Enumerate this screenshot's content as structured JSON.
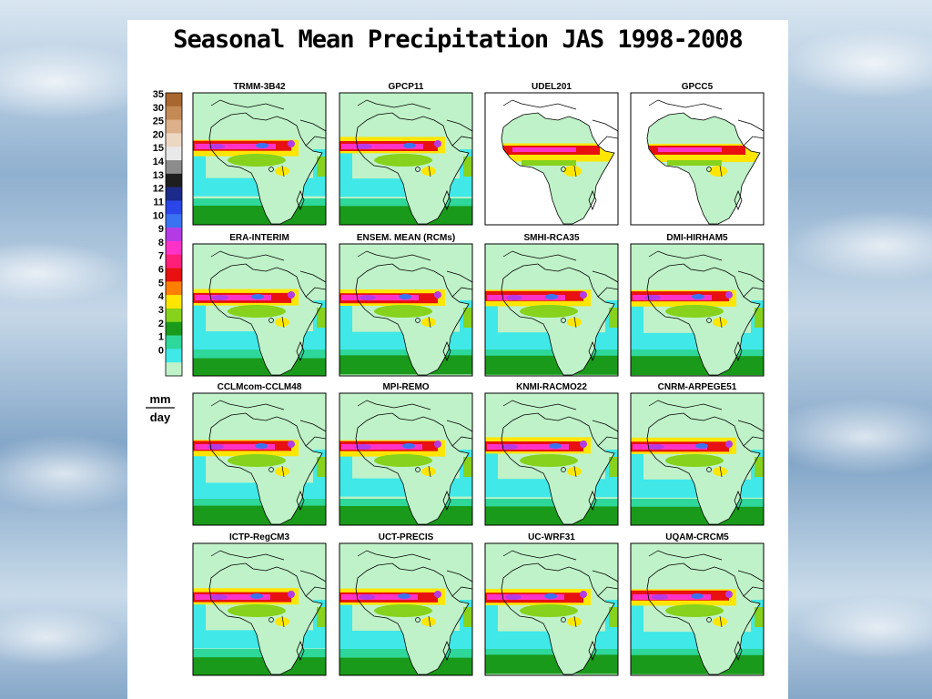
{
  "title": "Seasonal Mean Precipitation JAS 1998-2008",
  "colorbar": {
    "levels": [
      "35",
      "30",
      "25",
      "20",
      "15",
      "14",
      "13",
      "12",
      "11",
      "10",
      "9",
      "8",
      "7",
      "6",
      "5",
      "4",
      "3",
      "2",
      "1",
      "0"
    ],
    "colors": [
      "#a8672e",
      "#c48a55",
      "#dbb08a",
      "#ecd7c2",
      "#e9e9e9",
      "#8c8c8c",
      "#1e1e1e",
      "#1c2a8a",
      "#2a46e8",
      "#3a73f2",
      "#b43ae6",
      "#ff32c8",
      "#ff1f78",
      "#e81010",
      "#ff8000",
      "#ffe600",
      "#86d21c",
      "#1a9a1a",
      "#2ed79a",
      "#40e8e8",
      "#bff2c8"
    ],
    "units_top": "mm",
    "units_bottom": "day"
  },
  "colors": {
    "land": "#bff2c8",
    "ocean_light": "#40e8e8",
    "ocean_mid": "#2ed79a",
    "ocean_green": "#1a9a1a",
    "rain_yellow": "#ffe600",
    "rain_red": "#e81010",
    "rain_magenta": "#ff32c8",
    "rain_blue": "#3a73f2",
    "rain_purple": "#b43ae6"
  },
  "panels": [
    {
      "label": "TRMM-3B42",
      "style": "full"
    },
    {
      "label": "GPCP11",
      "style": "full"
    },
    {
      "label": "UDEL201",
      "style": "land-only"
    },
    {
      "label": "GPCC5",
      "style": "land-only"
    },
    {
      "label": "ERA-INTERIM",
      "style": "full"
    },
    {
      "label": "ENSEM. MEAN (RCMs)",
      "style": "full"
    },
    {
      "label": "SMHI-RCA35",
      "style": "full"
    },
    {
      "label": "DMI-HIRHAM5",
      "style": "full"
    },
    {
      "label": "CCLMcom-CCLM48",
      "style": "full"
    },
    {
      "label": "MPI-REMO",
      "style": "full"
    },
    {
      "label": "KNMI-RACMO22",
      "style": "full"
    },
    {
      "label": "CNRM-ARPEGE51",
      "style": "full"
    },
    {
      "label": "ICTP-RegCM3",
      "style": "full"
    },
    {
      "label": "UCT-PRECIS",
      "style": "full"
    },
    {
      "label": "UC-WRF31",
      "style": "full"
    },
    {
      "label": "UQAM-CRCM5",
      "style": "full"
    }
  ]
}
